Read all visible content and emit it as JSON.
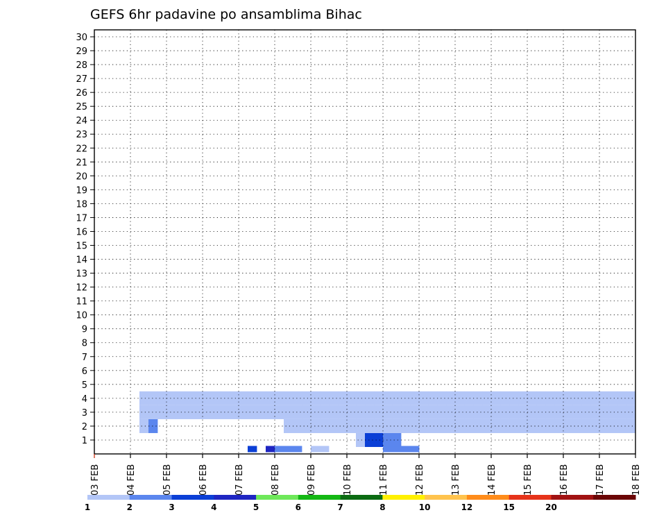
{
  "chart_data": {
    "type": "heatmap",
    "title": "GEFS 6hr padavine po ansamblima Bihac",
    "x_ticks": [
      "03 FEB",
      "04 FEB",
      "05 FEB",
      "06 FEB",
      "07 FEB",
      "08 FEB",
      "09 FEB",
      "10 FEB",
      "11 FEB",
      "12 FEB",
      "13 FEB",
      "14 FEB",
      "15 FEB",
      "16 FEB",
      "17 FEB",
      "18 FEB"
    ],
    "y_ticks": [
      "1",
      "2",
      "3",
      "4",
      "5",
      "6",
      "7",
      "8",
      "9",
      "10",
      "11",
      "12",
      "13",
      "14",
      "15",
      "16",
      "17",
      "18",
      "19",
      "20",
      "21",
      "22",
      "23",
      "24",
      "25",
      "26",
      "27",
      "28",
      "29",
      "30"
    ],
    "x_range": [
      "03 FEB 00Z",
      "18 FEB 00Z"
    ],
    "y_range": [
      0,
      30
    ],
    "time_step_hours": 6,
    "grid": "dotted",
    "colorbar": {
      "labels": [
        "1",
        "2",
        "3",
        "4",
        "5",
        "6",
        "7",
        "8",
        "10",
        "12",
        "15",
        "20"
      ],
      "colors": [
        "#b3c6f7",
        "#5b86ee",
        "#0b3fd6",
        "#1f26c2",
        "#6ee85a",
        "#14b814",
        "#0b6b12",
        "#fff000",
        "#ffc34d",
        "#ff8c1a",
        "#e6331a",
        "#a11212",
        "#6b0606"
      ]
    },
    "cells": [
      [
        24,
        0,
        0
      ],
      [
        25,
        0,
        0
      ],
      [
        17,
        2,
        0
      ],
      [
        19,
        3,
        0
      ],
      [
        20,
        1,
        0
      ],
      [
        21,
        1,
        0
      ],
      [
        22,
        1,
        0
      ],
      [
        32,
        1,
        0
      ],
      [
        33,
        1,
        0
      ],
      [
        34,
        1,
        0
      ],
      [
        35,
        1,
        0
      ],
      [
        29,
        0,
        1
      ],
      [
        30,
        2,
        1
      ],
      [
        31,
        2,
        1
      ],
      [
        32,
        1,
        1
      ],
      [
        33,
        1,
        1
      ],
      [
        5,
        0,
        2
      ],
      [
        6,
        1,
        2
      ],
      [
        21,
        0,
        2
      ],
      [
        22,
        0,
        2
      ],
      [
        23,
        0,
        2
      ],
      [
        24,
        0,
        2
      ],
      [
        25,
        0,
        2
      ],
      [
        26,
        0,
        2
      ],
      [
        27,
        0,
        2
      ],
      [
        28,
        0,
        2
      ],
      [
        29,
        0,
        2
      ],
      [
        30,
        0,
        2
      ],
      [
        31,
        0,
        2
      ],
      [
        32,
        0,
        2
      ],
      [
        33,
        0,
        2
      ],
      [
        34,
        0,
        2
      ],
      [
        35,
        0,
        2
      ],
      [
        36,
        0,
        2
      ],
      [
        37,
        0,
        2
      ],
      [
        38,
        0,
        2
      ],
      [
        39,
        0,
        2
      ],
      [
        40,
        0,
        2
      ],
      [
        41,
        0,
        2
      ],
      [
        42,
        0,
        2
      ],
      [
        43,
        0,
        2
      ],
      [
        44,
        0,
        2
      ],
      [
        45,
        0,
        2
      ],
      [
        46,
        0,
        2
      ],
      [
        47,
        0,
        2
      ],
      [
        48,
        0,
        2
      ],
      [
        49,
        0,
        2
      ],
      [
        50,
        0,
        2
      ],
      [
        51,
        0,
        2
      ],
      [
        52,
        0,
        2
      ],
      [
        53,
        0,
        2
      ],
      [
        54,
        0,
        2
      ],
      [
        55,
        0,
        2
      ],
      [
        56,
        0,
        2
      ],
      [
        57,
        0,
        2
      ],
      [
        58,
        0,
        2
      ],
      [
        59,
        0,
        2
      ],
      [
        5,
        0,
        3
      ],
      [
        6,
        0,
        3
      ],
      [
        7,
        0,
        3
      ],
      [
        8,
        0,
        3
      ],
      [
        9,
        0,
        3
      ],
      [
        10,
        0,
        3
      ],
      [
        11,
        0,
        3
      ],
      [
        12,
        0,
        3
      ],
      [
        13,
        0,
        3
      ],
      [
        14,
        0,
        3
      ],
      [
        15,
        0,
        3
      ],
      [
        16,
        0,
        3
      ],
      [
        17,
        0,
        3
      ],
      [
        18,
        0,
        3
      ],
      [
        19,
        0,
        3
      ],
      [
        20,
        0,
        3
      ],
      [
        21,
        0,
        3
      ],
      [
        22,
        0,
        3
      ],
      [
        23,
        0,
        3
      ],
      [
        24,
        0,
        3
      ],
      [
        25,
        0,
        3
      ],
      [
        26,
        0,
        3
      ],
      [
        27,
        0,
        3
      ],
      [
        28,
        0,
        3
      ],
      [
        29,
        0,
        3
      ],
      [
        30,
        0,
        3
      ],
      [
        31,
        0,
        3
      ],
      [
        32,
        0,
        3
      ],
      [
        33,
        0,
        3
      ],
      [
        34,
        0,
        3
      ],
      [
        35,
        0,
        3
      ],
      [
        36,
        0,
        3
      ],
      [
        37,
        0,
        3
      ],
      [
        38,
        0,
        3
      ],
      [
        39,
        0,
        3
      ],
      [
        40,
        0,
        3
      ],
      [
        41,
        0,
        3
      ],
      [
        42,
        0,
        3
      ],
      [
        43,
        0,
        3
      ],
      [
        44,
        0,
        3
      ],
      [
        45,
        0,
        3
      ],
      [
        46,
        0,
        3
      ],
      [
        47,
        0,
        3
      ],
      [
        48,
        0,
        3
      ],
      [
        49,
        0,
        3
      ],
      [
        50,
        0,
        3
      ],
      [
        51,
        0,
        3
      ],
      [
        52,
        0,
        3
      ],
      [
        53,
        0,
        3
      ],
      [
        54,
        0,
        3
      ],
      [
        55,
        0,
        3
      ],
      [
        56,
        0,
        3
      ],
      [
        57,
        0,
        3
      ],
      [
        58,
        0,
        3
      ],
      [
        59,
        0,
        3
      ],
      [
        5,
        0,
        4
      ],
      [
        6,
        0,
        4
      ],
      [
        7,
        0,
        4
      ],
      [
        8,
        0,
        4
      ],
      [
        9,
        0,
        4
      ],
      [
        10,
        0,
        4
      ],
      [
        11,
        0,
        4
      ],
      [
        12,
        0,
        4
      ],
      [
        13,
        0,
        4
      ],
      [
        14,
        0,
        4
      ],
      [
        15,
        0,
        4
      ],
      [
        16,
        0,
        4
      ],
      [
        17,
        0,
        4
      ],
      [
        18,
        0,
        4
      ],
      [
        19,
        0,
        4
      ],
      [
        20,
        0,
        4
      ],
      [
        21,
        0,
        4
      ],
      [
        22,
        0,
        4
      ],
      [
        23,
        0,
        4
      ],
      [
        24,
        0,
        4
      ],
      [
        25,
        0,
        4
      ],
      [
        26,
        0,
        4
      ],
      [
        27,
        0,
        4
      ],
      [
        28,
        0,
        4
      ],
      [
        29,
        0,
        4
      ],
      [
        30,
        0,
        4
      ],
      [
        31,
        0,
        4
      ],
      [
        32,
        0,
        4
      ],
      [
        33,
        0,
        4
      ],
      [
        34,
        0,
        4
      ],
      [
        35,
        0,
        4
      ],
      [
        36,
        0,
        4
      ],
      [
        37,
        0,
        4
      ],
      [
        38,
        0,
        4
      ],
      [
        39,
        0,
        4
      ],
      [
        40,
        0,
        4
      ],
      [
        41,
        0,
        4
      ],
      [
        42,
        0,
        4
      ],
      [
        43,
        0,
        4
      ],
      [
        44,
        0,
        4
      ],
      [
        45,
        0,
        4
      ],
      [
        46,
        0,
        4
      ],
      [
        47,
        0,
        4
      ],
      [
        48,
        0,
        4
      ],
      [
        49,
        0,
        4
      ],
      [
        50,
        0,
        4
      ],
      [
        51,
        0,
        4
      ],
      [
        52,
        0,
        4
      ],
      [
        53,
        0,
        4
      ],
      [
        54,
        0,
        4
      ],
      [
        55,
        0,
        4
      ],
      [
        56,
        0,
        4
      ],
      [
        57,
        0,
        4
      ],
      [
        58,
        0,
        4
      ],
      [
        59,
        0,
        4
      ]
    ]
  }
}
